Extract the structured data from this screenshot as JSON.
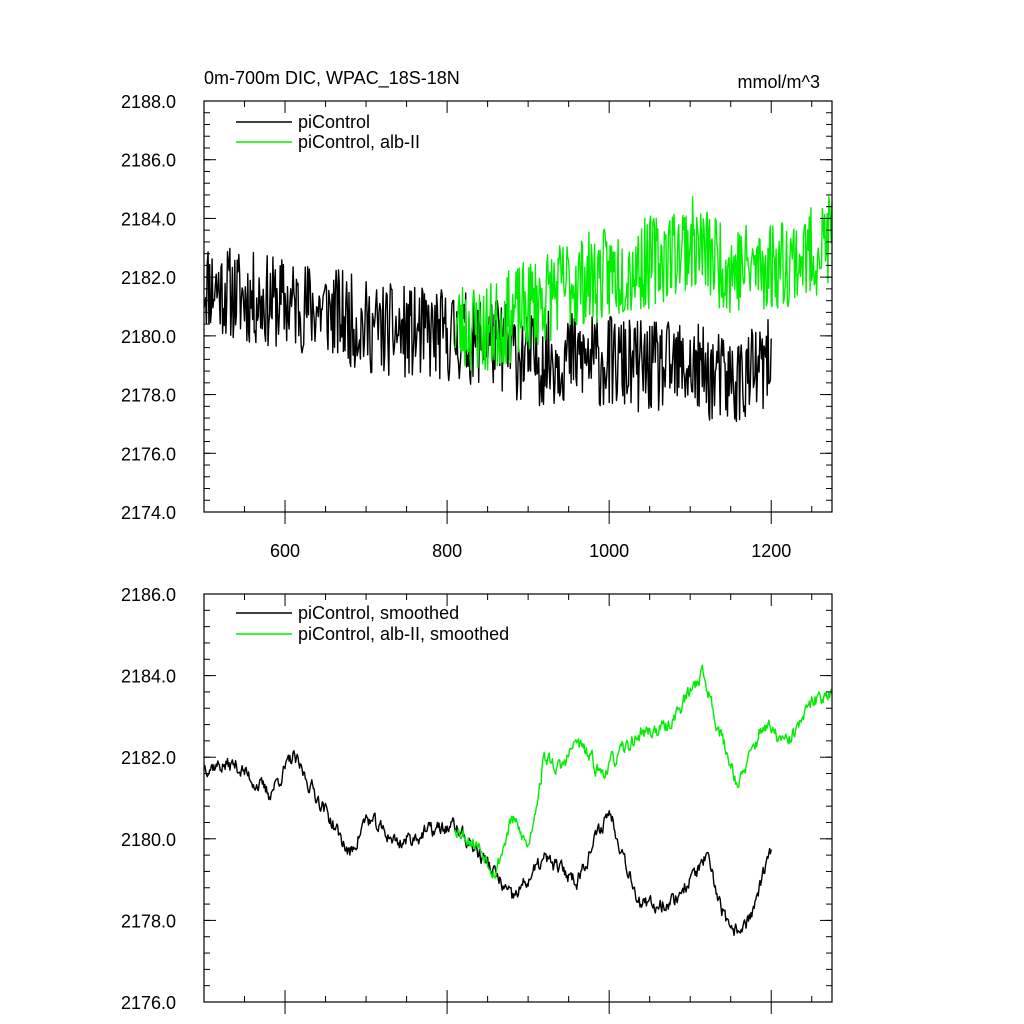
{
  "chart_data": [
    {
      "type": "line",
      "title": "0m-700m DIC, WPAC_18S-18N",
      "units_label": "mmol/m^3",
      "xlim": [
        500,
        1275
      ],
      "ylim": [
        2174,
        2188
      ],
      "x_ticks": [
        600,
        800,
        1000,
        1200
      ],
      "x_tick_labels": [
        "600",
        "800",
        "1000",
        "1200"
      ],
      "y_ticks": [
        2174,
        2176,
        2178,
        2180,
        2182,
        2184,
        2186,
        2188
      ],
      "y_tick_labels": [
        "2174.0",
        "2176.0",
        "2178.0",
        "2180.0",
        "2182.0",
        "2184.0",
        "2186.0",
        "2188.0"
      ],
      "legend_position": "top-left",
      "series": [
        {
          "name": "piControl",
          "color": "#000000",
          "x_start": 500,
          "x_end": 1200,
          "anchors_x": [
            500,
            550,
            600,
            650,
            700,
            750,
            800,
            850,
            900,
            950,
            1000,
            1050,
            1100,
            1150,
            1200
          ],
          "anchors_y": [
            2181.8,
            2181.3,
            2181.1,
            2180.9,
            2180.3,
            2180.1,
            2180.0,
            2179.9,
            2179.2,
            2179.3,
            2179.1,
            2178.9,
            2178.9,
            2178.4,
            2179.0
          ],
          "noise_amplitude": 1.6,
          "seed": 11
        },
        {
          "name": "piControl, alb-II",
          "color": "#00ee00",
          "x_start": 810,
          "x_end": 1275,
          "anchors_x": [
            810,
            850,
            900,
            950,
            1000,
            1050,
            1100,
            1150,
            1200,
            1250,
            1275
          ],
          "anchors_y": [
            2180.4,
            2180.2,
            2181.0,
            2181.8,
            2182.1,
            2182.5,
            2183.2,
            2182.3,
            2182.4,
            2182.8,
            2183.4
          ],
          "noise_amplitude": 1.6,
          "seed": 23
        }
      ]
    },
    {
      "type": "line",
      "title": "",
      "xlim": [
        500,
        1275
      ],
      "ylim": [
        2176,
        2186
      ],
      "x_ticks": [
        600,
        800,
        1000,
        1200
      ],
      "x_tick_labels": [],
      "y_ticks": [
        2176,
        2178,
        2180,
        2182,
        2184,
        2186
      ],
      "y_tick_labels": [
        "2176.0",
        "2178.0",
        "2180.0",
        "2182.0",
        "2184.0",
        "2186.0"
      ],
      "legend_position": "top-left",
      "series": [
        {
          "name": "piControl, smoothed",
          "color": "#000000",
          "x_start": 500,
          "x_end": 1200,
          "anchors_x": [
            500,
            540,
            580,
            610,
            650,
            680,
            700,
            740,
            780,
            810,
            850,
            880,
            920,
            960,
            1000,
            1040,
            1080,
            1120,
            1150,
            1175,
            1200
          ],
          "anchors_y": [
            2181.8,
            2181.8,
            2181.1,
            2182.0,
            2180.7,
            2179.6,
            2180.5,
            2179.9,
            2180.2,
            2180.3,
            2179.4,
            2178.5,
            2179.5,
            2179.0,
            2180.7,
            2178.3,
            2178.5,
            2179.5,
            2177.6,
            2178.1,
            2179.7
          ],
          "noise_amplitude": 0.4,
          "seed": 37
        },
        {
          "name": "piControl, alb-II, smoothed",
          "color": "#00ee00",
          "x_start": 810,
          "x_end": 1275,
          "anchors_x": [
            810,
            840,
            860,
            880,
            900,
            920,
            940,
            960,
            990,
            1010,
            1040,
            1070,
            1100,
            1115,
            1140,
            1160,
            1190,
            1220,
            1250,
            1275
          ],
          "anchors_y": [
            2180.3,
            2179.8,
            2179.2,
            2180.5,
            2179.8,
            2182.0,
            2181.7,
            2182.4,
            2181.6,
            2182.0,
            2182.6,
            2182.7,
            2183.6,
            2184.1,
            2182.4,
            2181.3,
            2182.8,
            2182.3,
            2183.3,
            2183.7
          ],
          "noise_amplitude": 0.4,
          "seed": 53
        }
      ]
    }
  ]
}
